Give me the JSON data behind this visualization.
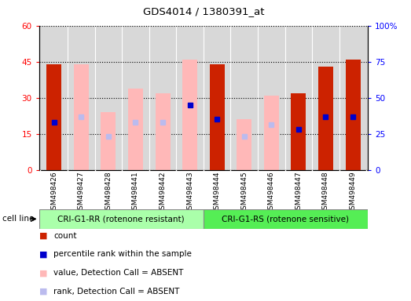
{
  "title": "GDS4014 / 1380391_at",
  "samples": [
    "GSM498426",
    "GSM498427",
    "GSM498428",
    "GSM498441",
    "GSM498442",
    "GSM498443",
    "GSM498444",
    "GSM498445",
    "GSM498446",
    "GSM498447",
    "GSM498448",
    "GSM498449"
  ],
  "group1_name": "CRI-G1-RR (rotenone resistant)",
  "group2_name": "CRI-G1-RS (rotenone sensitive)",
  "group1_color": "#aaffaa",
  "group2_color": "#55ee55",
  "red_bars": [
    44,
    0,
    0,
    0,
    0,
    0,
    44,
    0,
    0,
    32,
    43,
    46
  ],
  "pink_bars": [
    0,
    44,
    24,
    34,
    32,
    46,
    0,
    21,
    31,
    0,
    0,
    0
  ],
  "blue_markers": [
    20,
    0,
    0,
    0,
    0,
    27,
    21,
    0,
    0,
    17,
    22,
    22
  ],
  "lavender_markers": [
    0,
    22,
    14,
    20,
    20,
    0,
    0,
    14,
    19,
    0,
    0,
    0
  ],
  "ylim_left": [
    0,
    60
  ],
  "ylim_right": [
    0,
    100
  ],
  "yticks_left": [
    0,
    15,
    30,
    45,
    60
  ],
  "yticks_right": [
    0,
    25,
    50,
    75,
    100
  ],
  "ytick_labels_left": [
    "0",
    "15",
    "30",
    "45",
    "60"
  ],
  "ytick_labels_right": [
    "0",
    "25",
    "50",
    "75",
    "100%"
  ],
  "red_bar_color": "#cc2200",
  "pink_bar_color": "#ffb8b8",
  "blue_marker_color": "#0000cc",
  "lavender_marker_color": "#bbbbee",
  "bar_width": 0.55,
  "cell_line_label": "cell line",
  "legend_items": [
    {
      "color": "#cc2200",
      "label": "count"
    },
    {
      "color": "#0000cc",
      "label": "percentile rank within the sample"
    },
    {
      "color": "#ffb8b8",
      "label": "value, Detection Call = ABSENT"
    },
    {
      "color": "#bbbbee",
      "label": "rank, Detection Call = ABSENT"
    }
  ],
  "bg_color": "#d8d8d8",
  "sample_bg_color": "#d0d0d0"
}
